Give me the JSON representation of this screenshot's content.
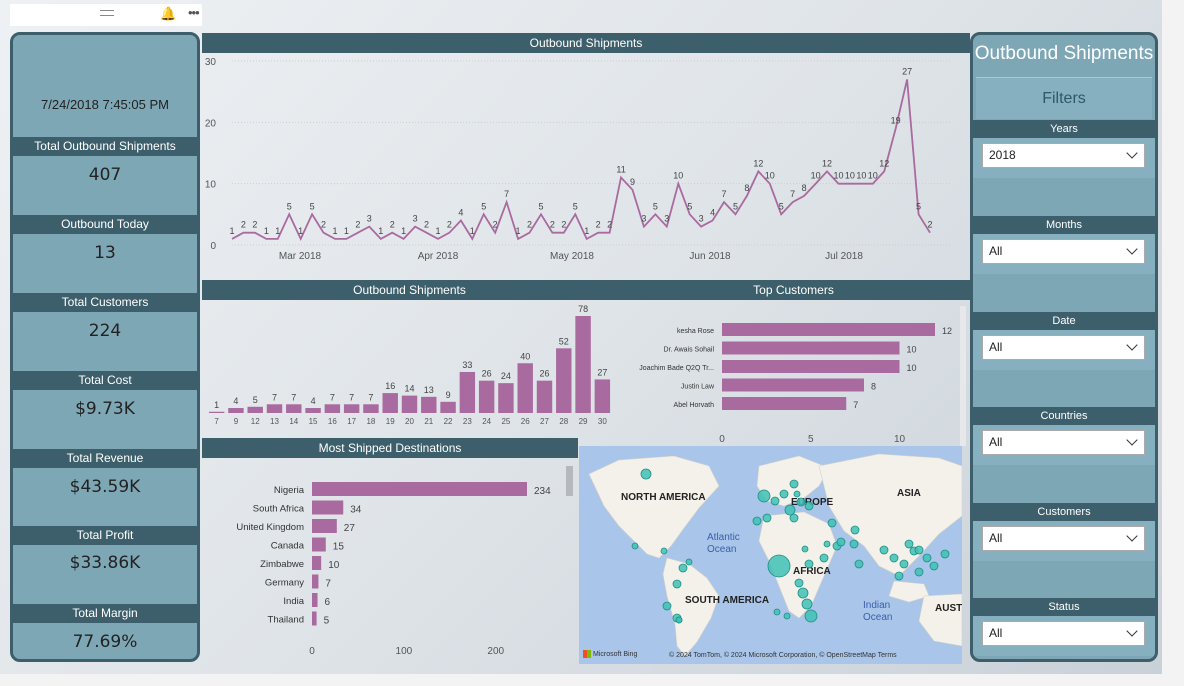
{
  "toolbar": {
    "grip_icon": "drag-grip-icon",
    "bell_icon": "bell-icon",
    "more_icon": "more-options-icon"
  },
  "kpis": {
    "datetime": "7/24/2018 7:45:05 PM",
    "items": [
      {
        "label": "Total Outbound Shipments",
        "value": "407"
      },
      {
        "label": "Outbound Today",
        "value": "13"
      },
      {
        "label": "Total Customers",
        "value": "224"
      },
      {
        "label": "Total Cost",
        "value": "$9.73K"
      },
      {
        "label": "Total Revenue",
        "value": "$43.59K"
      },
      {
        "label": "Total Profit",
        "value": "$33.86K"
      },
      {
        "label": "Total Margin",
        "value": "77.69%"
      }
    ]
  },
  "filters": {
    "title": "Outbound Shipments",
    "subtitle": "Filters",
    "slicers": [
      {
        "label": "Years",
        "value": "2018"
      },
      {
        "label": "Months",
        "value": "All"
      },
      {
        "label": "Date",
        "value": "All"
      },
      {
        "label": "Countries",
        "value": "All"
      },
      {
        "label": "Customers",
        "value": "All"
      },
      {
        "label": "Status",
        "value": "All"
      }
    ]
  },
  "headers": {
    "line": "Outbound Shipments",
    "bars": "Outbound Shipments",
    "customers": "Top Customers",
    "destinations": "Most Shipped Destinations"
  },
  "chart_data": [
    {
      "type": "line",
      "title": "Outbound Shipments",
      "x_ticks": [
        "Mar 2018",
        "Apr 2018",
        "May 2018",
        "Jun 2018",
        "Jul 2018"
      ],
      "y_ticks": [
        0,
        10,
        20,
        30
      ],
      "ylim": [
        0,
        30
      ],
      "values": [
        1,
        2,
        2,
        1,
        1,
        5,
        1,
        5,
        2,
        1,
        1,
        2,
        3,
        1,
        2,
        1,
        3,
        2,
        1,
        2,
        4,
        1,
        5,
        2,
        7,
        1,
        2,
        5,
        2,
        2,
        5,
        1,
        2,
        2,
        11,
        9,
        3,
        5,
        3,
        10,
        5,
        3,
        4,
        7,
        5,
        8,
        12,
        10,
        5,
        7,
        8,
        10,
        12,
        10,
        10,
        10,
        10,
        12,
        19,
        27,
        5,
        2
      ],
      "labels": [
        1,
        2,
        2,
        1,
        1,
        5,
        1,
        5,
        2,
        1,
        1,
        2,
        3,
        1,
        2,
        1,
        3,
        2,
        1,
        2,
        4,
        1,
        5,
        2,
        7,
        1,
        2,
        5,
        2,
        2,
        5,
        1,
        2,
        2,
        11,
        9,
        3,
        5,
        3,
        10,
        5,
        3,
        4,
        7,
        5,
        8,
        12,
        10,
        5,
        7,
        8,
        10,
        12,
        10,
        10,
        10,
        10,
        12,
        19,
        27,
        5,
        2
      ]
    },
    {
      "type": "bar",
      "title": "Outbound Shipments",
      "categories": [
        "7",
        "9",
        "12",
        "13",
        "14",
        "15",
        "16",
        "17",
        "18",
        "19",
        "20",
        "21",
        "22",
        "23",
        "24",
        "25",
        "26",
        "27",
        "28",
        "29",
        "30"
      ],
      "values": [
        1,
        4,
        5,
        7,
        7,
        4,
        7,
        7,
        7,
        16,
        14,
        13,
        9,
        33,
        26,
        24,
        40,
        26,
        52,
        78,
        27
      ],
      "ylim": [
        0,
        78
      ]
    },
    {
      "type": "bar",
      "orientation": "horizontal",
      "title": "Top Customers",
      "categories": [
        "kesha Rose",
        "Dr. Awais Sohail",
        "Joachim Bade Q2Q Tr...",
        "Justin Law",
        "Abel Horvath"
      ],
      "values": [
        12,
        10,
        10,
        8,
        7
      ],
      "x_ticks": [
        0,
        5,
        10
      ],
      "xlim": [
        0,
        12
      ]
    },
    {
      "type": "bar",
      "orientation": "horizontal",
      "title": "Most Shipped Destinations",
      "categories": [
        "Nigeria",
        "South Africa",
        "United Kingdom",
        "Canada",
        "Zimbabwe",
        "Germany",
        "India",
        "Thailand"
      ],
      "values": [
        234,
        34,
        27,
        15,
        10,
        7,
        6,
        5
      ],
      "x_ticks": [
        0,
        100,
        200
      ],
      "xlim": [
        0,
        234
      ]
    }
  ],
  "map": {
    "labels": [
      "NORTH AMERICA",
      "EUROPE",
      "ASIA",
      "Atlantic",
      "Ocean",
      "AFRICA",
      "SOUTH AMERICA",
      "Indian",
      "Ocean",
      "AUST"
    ],
    "credit": "© 2024 TomTom, © 2024 Microsoft Corporation, © OpenStreetMap  Terms",
    "brand": "Microsoft Bing",
    "bubble_color": "#3fc1b5",
    "land_color": "#f4f1ea",
    "water_color": "#a9c6ea"
  },
  "colors": {
    "accent": "#a96a9f",
    "header": "#3d5f6b",
    "panel": "#7ea7b6"
  }
}
